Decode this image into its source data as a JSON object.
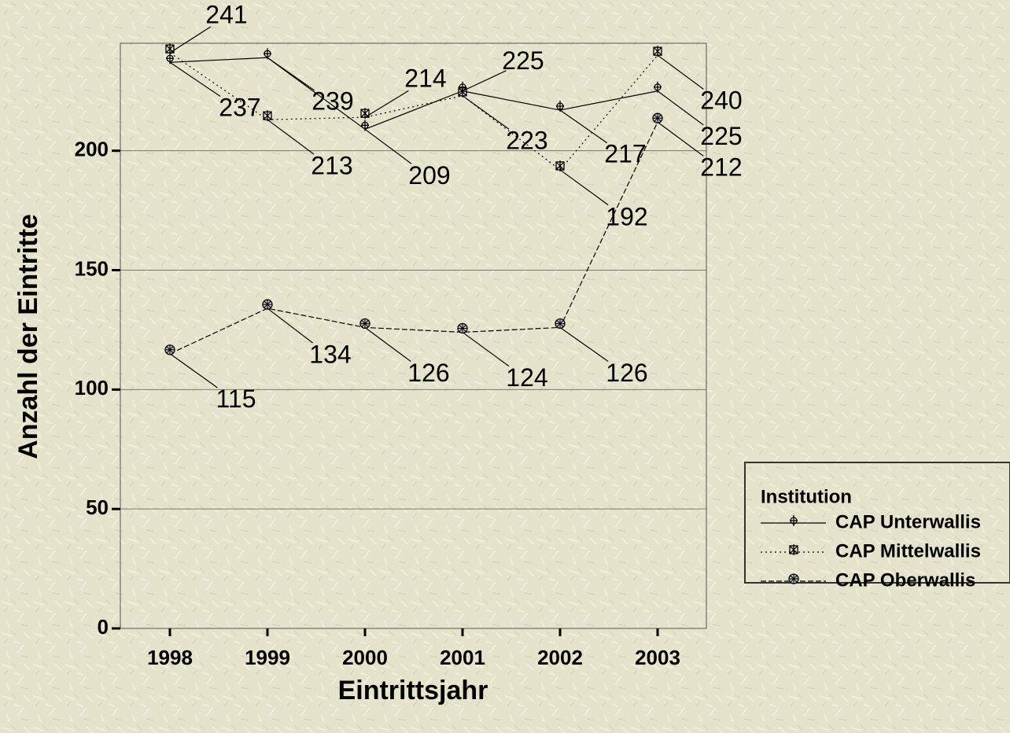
{
  "chart_data": {
    "type": "line",
    "categories": [
      "1998",
      "1999",
      "2000",
      "2001",
      "2002",
      "2003"
    ],
    "series": [
      {
        "name": "CAP Unterwallis",
        "color": "#000000",
        "values": [
          237,
          239,
          209,
          225,
          217,
          225
        ]
      },
      {
        "name": "CAP Mittelwallis",
        "color": "#000000",
        "values": [
          241,
          213,
          214,
          223,
          192,
          240
        ]
      },
      {
        "name": "CAP Oberwallis",
        "color": "#000000",
        "values": [
          115,
          134,
          126,
          124,
          126,
          212
        ]
      }
    ],
    "xlabel": "Eintrittsjahr",
    "ylabel": "Anzahl der Eintritte",
    "ylim": [
      0,
      245
    ],
    "yticks": [
      0,
      50,
      100,
      150,
      200
    ],
    "grid": true,
    "legend": {
      "title": "Institution",
      "position": "right"
    }
  }
}
